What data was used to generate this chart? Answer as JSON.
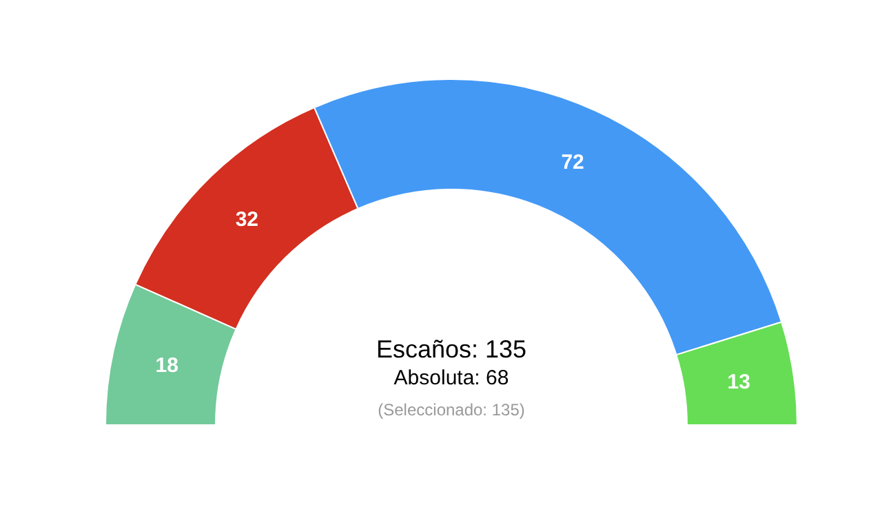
{
  "chart_data": {
    "type": "donut",
    "categories": [
      null,
      null,
      null,
      null
    ],
    "values": [
      18,
      32,
      72,
      13
    ],
    "colors": [
      "#72c99a",
      "#d42f20",
      "#4499f5",
      "#66dd55"
    ],
    "data_labels": true,
    "annotations": [
      "Escaños: 135",
      "Absoluta: 68",
      "(Seleccionado: 135)"
    ]
  }
}
